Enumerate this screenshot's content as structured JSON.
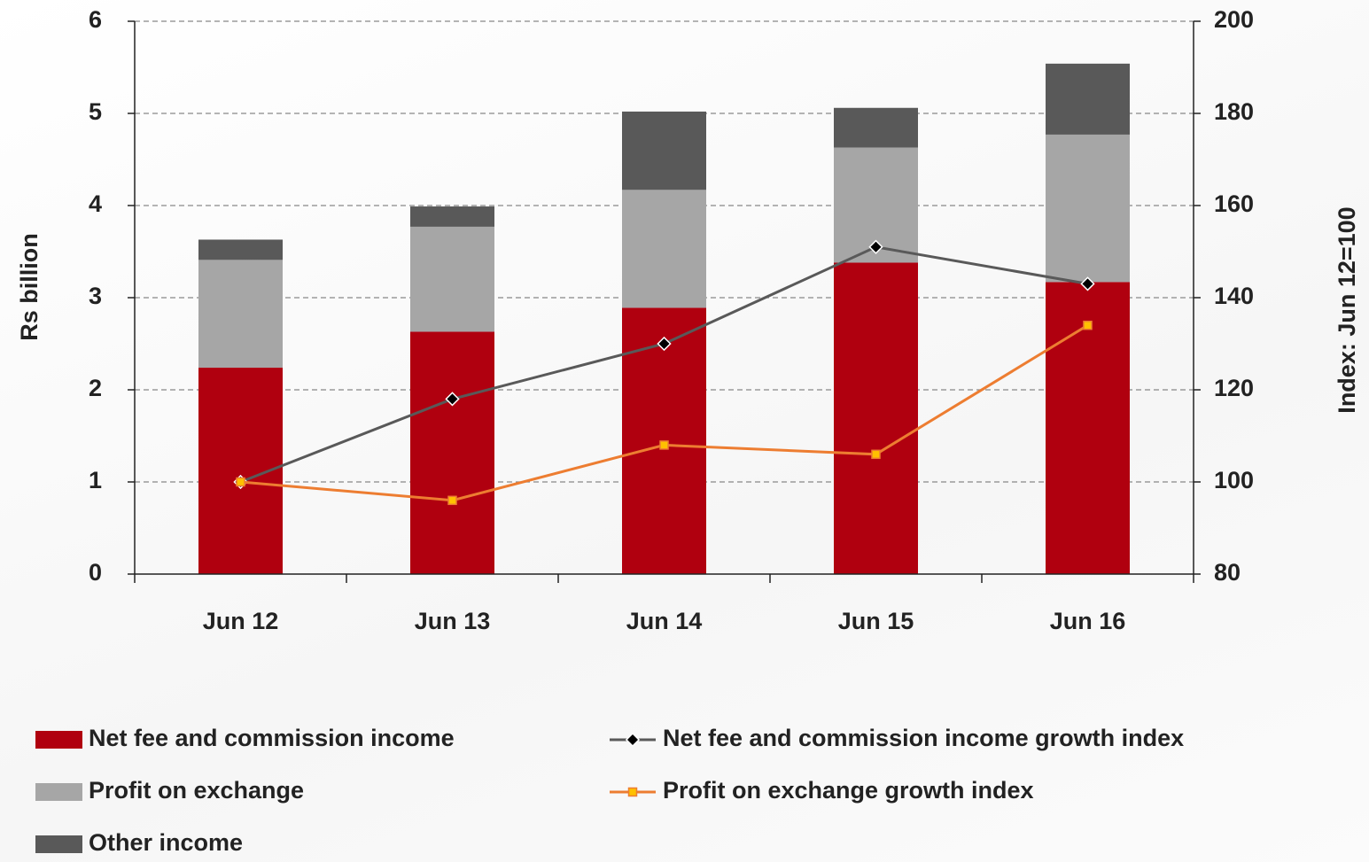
{
  "chart_data": {
    "type": "bar",
    "stacked": true,
    "categories": [
      "Jun 12",
      "Jun 13",
      "Jun 14",
      "Jun 15",
      "Jun 16"
    ],
    "series": [
      {
        "name": "Net fee and commission income",
        "type": "bar",
        "color": "#b0000f",
        "values": [
          2.24,
          2.63,
          2.89,
          3.38,
          3.17
        ]
      },
      {
        "name": "Profit on exchange",
        "type": "bar",
        "color": "#a6a6a6",
        "values": [
          1.17,
          1.14,
          1.28,
          1.25,
          1.6
        ]
      },
      {
        "name": "Other income",
        "type": "bar",
        "color": "#595959",
        "values": [
          0.22,
          0.22,
          0.85,
          0.43,
          0.77
        ]
      },
      {
        "name": "Net fee and commission income growth index",
        "type": "line",
        "axis": "y2",
        "color": "#595959",
        "marker_color": "#000000",
        "values": [
          100,
          118,
          130,
          151,
          143
        ]
      },
      {
        "name": "Profit on exchange growth index",
        "type": "line",
        "axis": "y2",
        "color": "#ed7d31",
        "marker_color": "#ffc000",
        "values": [
          100,
          96,
          108,
          106,
          134
        ]
      }
    ],
    "y_label": "Rs billion",
    "y2_label": "Index: Jun 12=100",
    "ylim": [
      0,
      6
    ],
    "yticks": [
      0,
      1,
      2,
      3,
      4,
      5,
      6
    ],
    "y2lim": [
      80,
      200
    ],
    "y2ticks": [
      80,
      100,
      120,
      140,
      160,
      180,
      200
    ],
    "grid": true,
    "legend": "bottom"
  }
}
